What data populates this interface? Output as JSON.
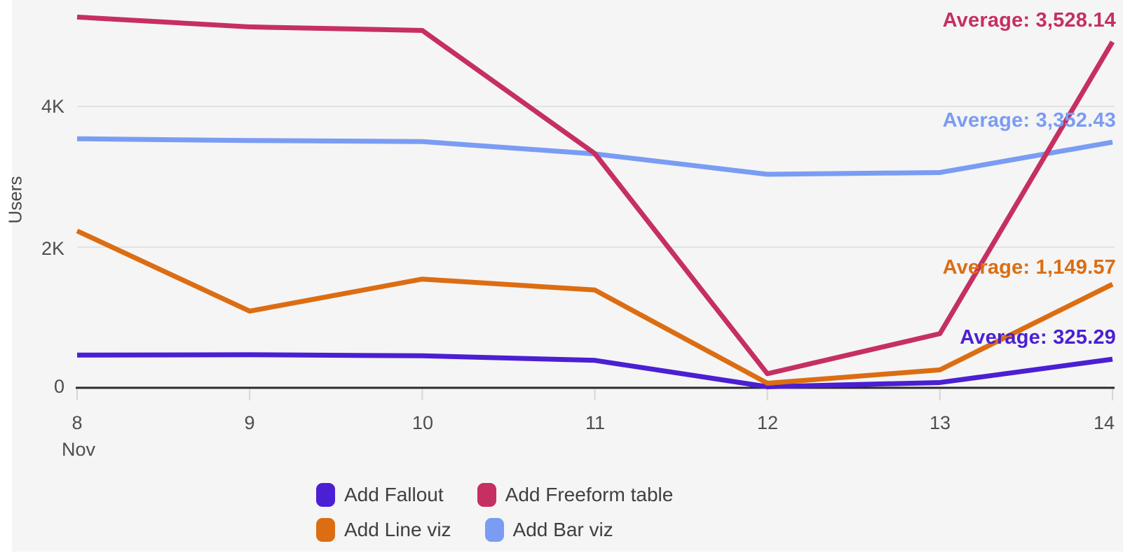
{
  "chart_data": {
    "type": "line",
    "title": "",
    "ylabel": "Users",
    "x_month_label": "Nov",
    "x_tick_labels": [
      "8",
      "9",
      "10",
      "11",
      "12",
      "13",
      "14"
    ],
    "y_ticks": [
      {
        "value": 0,
        "label": "0"
      },
      {
        "value": 2000,
        "label": "2K"
      },
      {
        "value": 4000,
        "label": "4K"
      }
    ],
    "ylim": [
      0,
      5560
    ],
    "grid": "horizontal gridlines at 2K and 4K",
    "legend_position": "bottom-center",
    "series": [
      {
        "name": "Add Fallout",
        "color": "#4B1FD3",
        "values": [
          465,
          470,
          455,
          390,
          15,
          75,
          407
        ],
        "average": 325.29,
        "average_label": "Average: 325.29"
      },
      {
        "name": "Add Freeform table",
        "color": "#C62F61",
        "values": [
          5270,
          5130,
          5080,
          3330,
          200,
          770,
          4917
        ],
        "average": 3528.14,
        "average_label": "Average: 3,528.14"
      },
      {
        "name": "Add Line viz",
        "color": "#DC6D12",
        "values": [
          2230,
          1090,
          1545,
          1390,
          65,
          255,
          1472
        ],
        "average": 1149.57,
        "average_label": "Average: 1,149.57"
      },
      {
        "name": "Add Bar viz",
        "color": "#7A9CF3",
        "values": [
          3540,
          3515,
          3500,
          3325,
          3035,
          3060,
          3492
        ],
        "average": 3352.43,
        "average_label": "Average: 3,352.43"
      }
    ]
  },
  "layout_colors": {
    "background": "#F5F5F5",
    "gridline": "#E2E2E2",
    "axis_line": "#2B2B2B",
    "tick_mark": "#D6D6D6",
    "axis_text": "#4E4E4E"
  }
}
